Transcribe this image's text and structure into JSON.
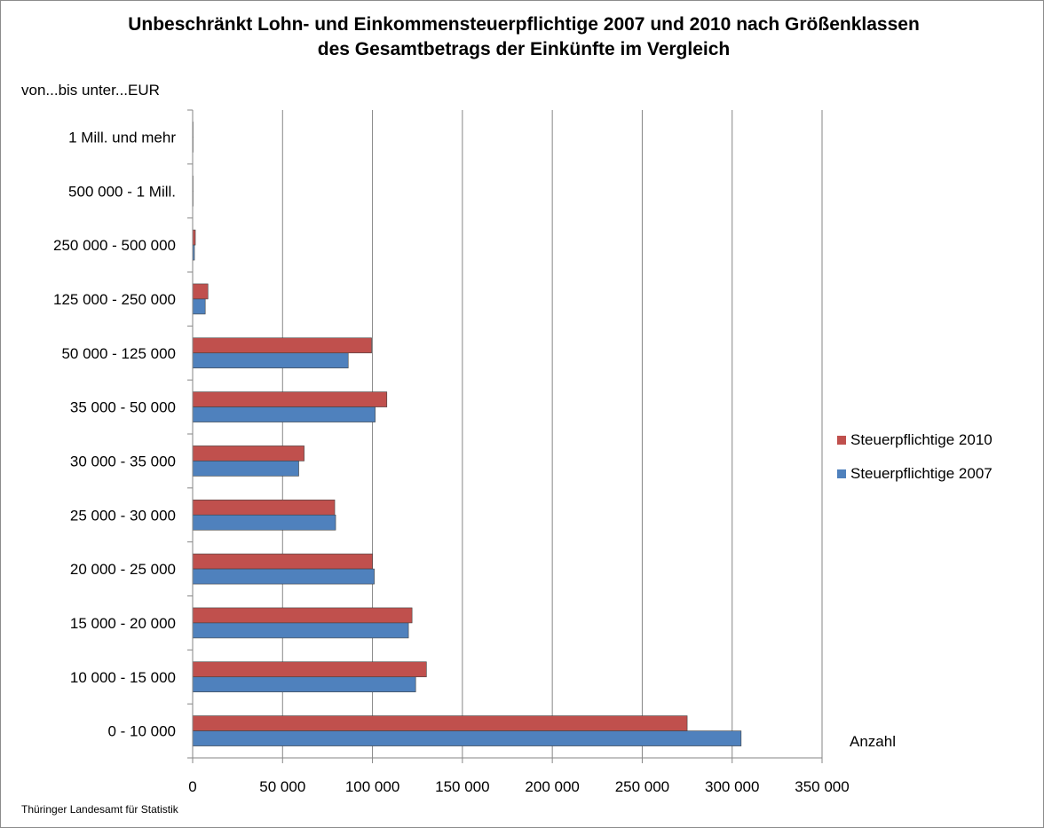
{
  "title": "Unbeschränkt Lohn- und Einkommensteuerpflichtige 2007 und 2010 nach Größenklassen des Gesamtbetrags der Einkünfte im Vergleich",
  "source": "Thüringer Landesamt für Statistik",
  "colors": {
    "s2010": "#c0504d",
    "s2007": "#4f81bd",
    "grid": "#868686"
  },
  "chart_data": {
    "type": "bar",
    "orientation": "horizontal",
    "title": "Unbeschränkt Lohn- und Einkommensteuerpflichtige 2007 und 2010 nach Größenklassen des Gesamtbetrags der Einkünfte im Vergleich",
    "ylabel": "von...bis unter...EUR",
    "xlabel": "Anzahl",
    "xlim": [
      0,
      350000
    ],
    "xticks": [
      0,
      50000,
      100000,
      150000,
      200000,
      250000,
      300000,
      350000
    ],
    "xtick_labels": [
      "0",
      "50 000",
      "100 000",
      "150 000",
      "200 000",
      "250 000",
      "300 000",
      "350 000"
    ],
    "grid": true,
    "legend_position": "right",
    "categories": [
      "0 - 10 000",
      "10 000 - 15 000",
      "15 000 - 20 000",
      "20 000 - 25 000",
      "25 000 - 30 000",
      "30 000 - 35 000",
      "35 000 - 50 000",
      "50 000 - 125 000",
      "125 000 - 250 000",
      "250 000 - 500 000",
      "500 000 - 1 Mill.",
      "1 Mill. und mehr"
    ],
    "category_labels": [
      "0 - 10 000",
      "10 000 - 15 000",
      "15 000 - 20 000",
      "20 000 - 25 000",
      "25 000 - 30 000",
      "30 000 - 35 000",
      "35 000 - 50 000",
      "50 000 - 125 000",
      "125 000 - 250 000",
      "250 000 - 500 000",
      "500 000 - 1 Mill.",
      "1 Mill. und mehr"
    ],
    "series": [
      {
        "name": "Steuerpflichtige 2010",
        "values": [
          275000,
          130000,
          122000,
          100000,
          79000,
          62000,
          108000,
          99500,
          8500,
          1500,
          200,
          100
        ]
      },
      {
        "name": "Steuerpflichtige 2007",
        "values": [
          305000,
          124000,
          120000,
          101000,
          79500,
          59000,
          101500,
          86500,
          7000,
          1000,
          150,
          80
        ]
      }
    ]
  }
}
